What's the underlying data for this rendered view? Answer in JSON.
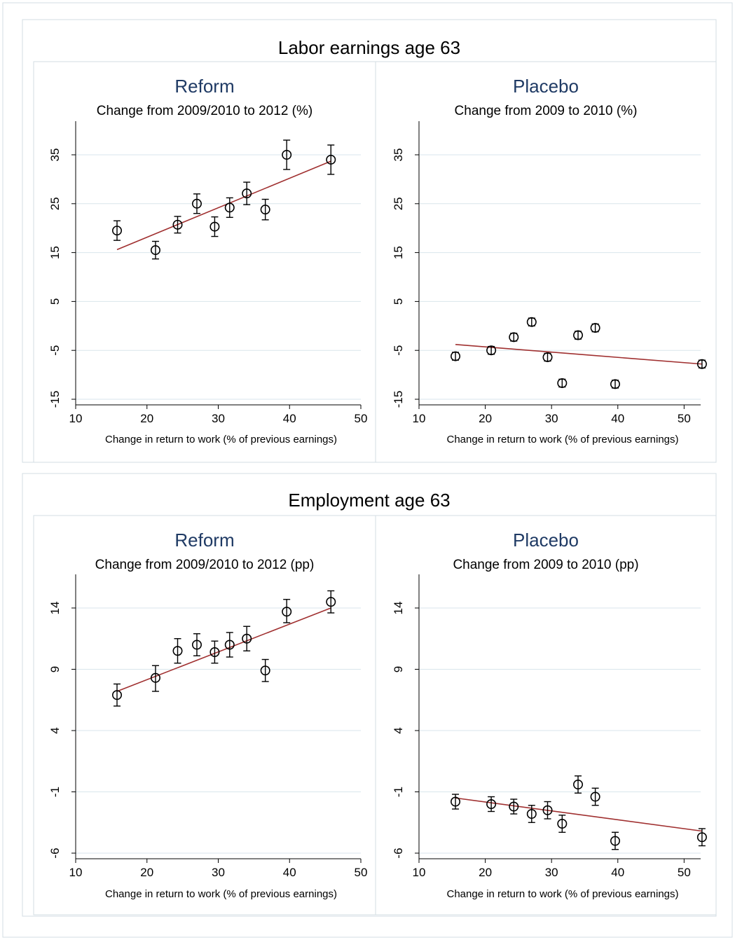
{
  "colors": {
    "fit_line": "#a03030",
    "grid": "#d9e6ec",
    "title_blue": "#1f3a64",
    "border": "#d3dde3"
  },
  "chart_data": [
    {
      "group_title": "Labor earnings age 63",
      "panels": [
        {
          "type": "scatter",
          "title": "Reform",
          "subtitle": "Change from 2009/2010 to 2012 (%)",
          "xlabel": "Change in return to work (% of previous earnings)",
          "ylabel": "",
          "xlim": [
            10,
            50
          ],
          "ylim": [
            -15,
            35
          ],
          "xticks": [
            10,
            20,
            30,
            40,
            50
          ],
          "yticks": [
            -15,
            -5,
            5,
            15,
            25,
            35
          ],
          "grid": true,
          "points": [
            {
              "x": 15.8,
              "y": 19.5,
              "lo": 17.5,
              "hi": 21.5
            },
            {
              "x": 21.2,
              "y": 15.5,
              "lo": 13.7,
              "hi": 17.3
            },
            {
              "x": 24.3,
              "y": 20.7,
              "lo": 19.0,
              "hi": 22.4
            },
            {
              "x": 27.0,
              "y": 25.0,
              "lo": 23.0,
              "hi": 27.0
            },
            {
              "x": 29.5,
              "y": 20.3,
              "lo": 18.3,
              "hi": 22.3
            },
            {
              "x": 31.6,
              "y": 24.2,
              "lo": 22.2,
              "hi": 26.2
            },
            {
              "x": 34.0,
              "y": 27.1,
              "lo": 24.8,
              "hi": 29.4
            },
            {
              "x": 36.6,
              "y": 23.8,
              "lo": 21.7,
              "hi": 25.9
            },
            {
              "x": 39.6,
              "y": 35.0,
              "lo": 32.0,
              "hi": 38.0
            },
            {
              "x": 45.8,
              "y": 34.0,
              "lo": 31.0,
              "hi": 37.0
            }
          ],
          "fit": {
            "x": [
              15.8,
              45.8
            ],
            "y": [
              15.6,
              33.7
            ]
          }
        },
        {
          "type": "scatter",
          "title": "Placebo",
          "subtitle": "Change from 2009 to 2010 (%)",
          "xlabel": "Change in return to work (% of previous earnings)",
          "ylabel": "",
          "xlim": [
            10,
            52.5
          ],
          "ylim": [
            -15,
            35
          ],
          "xticks": [
            10,
            20,
            30,
            40,
            50
          ],
          "yticks": [
            -15,
            -5,
            5,
            15,
            25,
            35
          ],
          "grid": true,
          "points": [
            {
              "x": 15.5,
              "y": -6.2,
              "lo": -7.0,
              "hi": -5.4
            },
            {
              "x": 20.9,
              "y": -5.0,
              "lo": -5.8,
              "hi": -4.2
            },
            {
              "x": 24.3,
              "y": -2.3,
              "lo": -3.1,
              "hi": -1.5
            },
            {
              "x": 27.0,
              "y": 0.8,
              "lo": 0.0,
              "hi": 1.6
            },
            {
              "x": 29.4,
              "y": -6.4,
              "lo": -7.2,
              "hi": -5.6
            },
            {
              "x": 31.6,
              "y": -11.7,
              "lo": -12.5,
              "hi": -10.9
            },
            {
              "x": 34.0,
              "y": -1.9,
              "lo": -2.7,
              "hi": -1.1
            },
            {
              "x": 36.6,
              "y": -0.4,
              "lo": -1.2,
              "hi": 0.4
            },
            {
              "x": 39.6,
              "y": -11.9,
              "lo": -12.7,
              "hi": -11.1
            },
            {
              "x": 52.7,
              "y": -7.8,
              "lo": -8.6,
              "hi": -7.0
            }
          ],
          "fit": {
            "x": [
              15.5,
              52.7
            ],
            "y": [
              -3.8,
              -7.8
            ]
          }
        }
      ]
    },
    {
      "group_title": "Employment age 63",
      "panels": [
        {
          "type": "scatter",
          "title": "Reform",
          "subtitle": "Change from 2009/2010 to 2012 (pp)",
          "xlabel": "Change in return to work (% of previous earnings)",
          "ylabel": "",
          "xlim": [
            10,
            50
          ],
          "ylim": [
            -6,
            14
          ],
          "xticks": [
            10,
            20,
            30,
            40,
            50
          ],
          "yticks": [
            -6,
            -1,
            4,
            9,
            14
          ],
          "grid": true,
          "points": [
            {
              "x": 15.8,
              "y": 6.9,
              "lo": 6.0,
              "hi": 7.8
            },
            {
              "x": 21.2,
              "y": 8.3,
              "lo": 7.2,
              "hi": 9.3
            },
            {
              "x": 24.3,
              "y": 10.5,
              "lo": 9.5,
              "hi": 11.5
            },
            {
              "x": 27.0,
              "y": 11.0,
              "lo": 10.1,
              "hi": 11.9
            },
            {
              "x": 29.5,
              "y": 10.4,
              "lo": 9.5,
              "hi": 11.3
            },
            {
              "x": 31.6,
              "y": 11.0,
              "lo": 10.0,
              "hi": 12.0
            },
            {
              "x": 34.0,
              "y": 11.5,
              "lo": 10.5,
              "hi": 12.5
            },
            {
              "x": 36.6,
              "y": 8.9,
              "lo": 8.0,
              "hi": 9.8
            },
            {
              "x": 39.6,
              "y": 13.7,
              "lo": 12.8,
              "hi": 14.7
            },
            {
              "x": 45.8,
              "y": 14.5,
              "lo": 13.6,
              "hi": 15.4
            }
          ],
          "fit": {
            "x": [
              15.8,
              45.8
            ],
            "y": [
              7.2,
              14.0
            ]
          }
        },
        {
          "type": "scatter",
          "title": "Placebo",
          "subtitle": "Change from 2009 to 2010 (pp)",
          "xlabel": "Change in return to work (% of previous earnings)",
          "ylabel": "",
          "xlim": [
            10,
            52.5
          ],
          "ylim": [
            -6,
            14
          ],
          "xticks": [
            10,
            20,
            30,
            40,
            50
          ],
          "yticks": [
            -6,
            -1,
            4,
            9,
            14
          ],
          "grid": true,
          "points": [
            {
              "x": 15.5,
              "y": -1.8,
              "lo": -2.4,
              "hi": -1.2
            },
            {
              "x": 20.9,
              "y": -2.0,
              "lo": -2.6,
              "hi": -1.4
            },
            {
              "x": 24.3,
              "y": -2.2,
              "lo": -2.8,
              "hi": -1.6
            },
            {
              "x": 27.0,
              "y": -2.8,
              "lo": -3.5,
              "hi": -2.1
            },
            {
              "x": 29.4,
              "y": -2.5,
              "lo": -3.2,
              "hi": -1.8
            },
            {
              "x": 31.6,
              "y": -3.6,
              "lo": -4.3,
              "hi": -2.9
            },
            {
              "x": 34.0,
              "y": -0.4,
              "lo": -1.1,
              "hi": 0.3
            },
            {
              "x": 36.6,
              "y": -1.4,
              "lo": -2.1,
              "hi": -0.7
            },
            {
              "x": 39.6,
              "y": -5.0,
              "lo": -5.7,
              "hi": -4.3
            },
            {
              "x": 52.7,
              "y": -4.7,
              "lo": -5.4,
              "hi": -4.0
            }
          ],
          "fit": {
            "x": [
              15.5,
              52.7
            ],
            "y": [
              -1.5,
              -4.2
            ]
          }
        }
      ]
    }
  ]
}
